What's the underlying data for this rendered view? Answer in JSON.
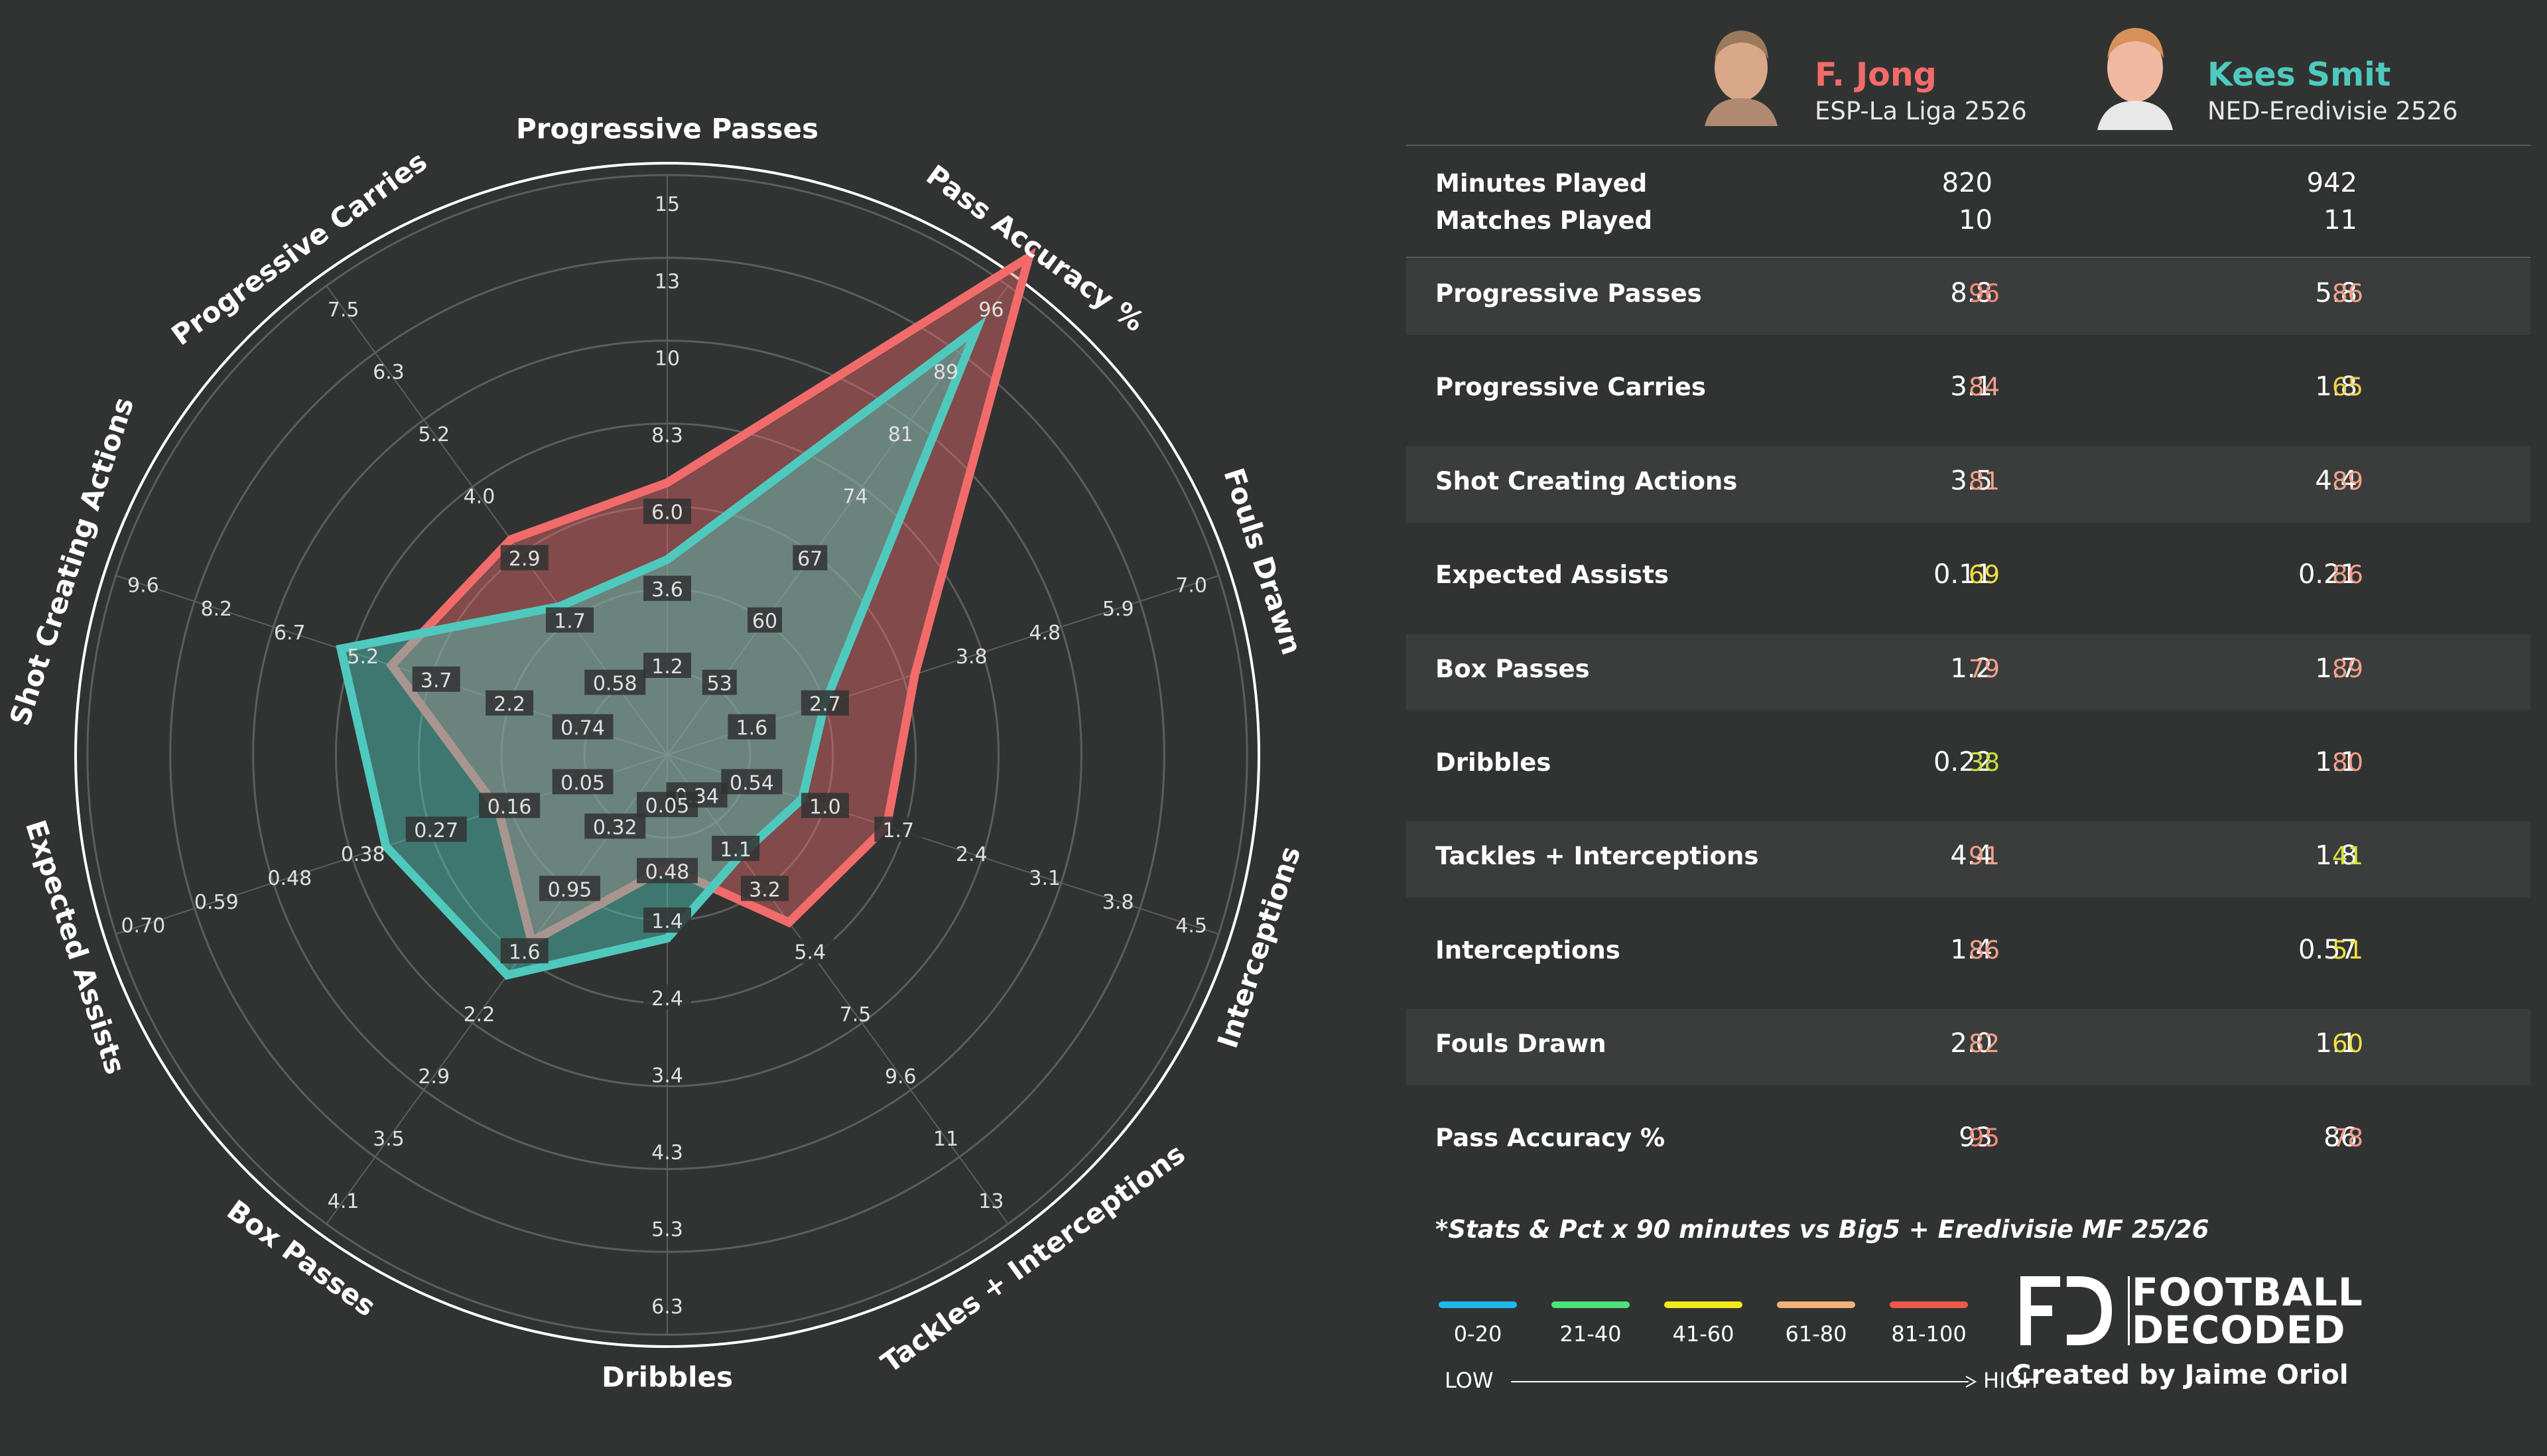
{
  "chart_data": {
    "type": "radar",
    "axes": [
      {
        "name": "Progressive Passes",
        "ticks": [
          "1.2",
          "3.6",
          "6.0",
          "8.3",
          "10",
          "13",
          "15"
        ]
      },
      {
        "name": "Pass Accuracy %",
        "ticks": [
          "53",
          "60",
          "67",
          "74",
          "81",
          "89",
          "96"
        ]
      },
      {
        "name": "Fouls Drawn",
        "ticks": [
          "1.6",
          "2.7",
          "3.8",
          "4.8",
          "5.9",
          "7.0"
        ]
      },
      {
        "name": "Interceptions",
        "ticks": [
          "0.54",
          "1.0",
          "1.7",
          "2.4",
          "3.1",
          "3.8",
          "4.5"
        ]
      },
      {
        "name": "Tackles + Interceptions",
        "ticks": [
          "0.34",
          "1.1",
          "3.2",
          "5.4",
          "7.5",
          "9.6",
          "11",
          "13"
        ]
      },
      {
        "name": "Dribbles",
        "ticks": [
          "0.05",
          "0.48",
          "1.4",
          "2.4",
          "3.4",
          "4.3",
          "5.3",
          "6.3"
        ]
      },
      {
        "name": "Box Passes",
        "ticks": [
          "0.32",
          "0.95",
          "1.6",
          "2.2",
          "2.9",
          "3.5",
          "4.1"
        ]
      },
      {
        "name": "Expected Assists",
        "ticks": [
          "0.05",
          "0.16",
          "0.27",
          "0.38",
          "0.48",
          "0.59",
          "0.70"
        ]
      },
      {
        "name": "Shot Creating Actions",
        "ticks": [
          "0.74",
          "2.2",
          "3.7",
          "5.2",
          "6.7",
          "8.2",
          "9.6"
        ]
      },
      {
        "name": "Progressive Carries",
        "ticks": [
          "0.58",
          "1.7",
          "2.9",
          "4.0",
          "5.2",
          "6.3",
          "7.5"
        ]
      }
    ],
    "series": [
      {
        "name": "F. Jong",
        "color": "#f26b6b",
        "values_fraction_of_max": [
          0.46,
          1.04,
          0.44,
          0.39,
          0.35,
          0.19,
          0.39,
          0.3,
          0.49,
          0.45
        ]
      },
      {
        "name": "Kees Smit",
        "color": "#4fc9bd",
        "values_fraction_of_max": [
          0.33,
          0.89,
          0.28,
          0.24,
          0.21,
          0.31,
          0.46,
          0.5,
          0.58,
          0.31
        ]
      }
    ],
    "tick_fraction_of_max": [
      0.14,
      0.28,
      0.42,
      0.56,
      0.7,
      0.84,
      0.98
    ]
  },
  "players": [
    {
      "name": "F. Jong",
      "league": "ESP-La Liga 2526",
      "color": "#f26b6b",
      "minutes": "820",
      "matches": "10"
    },
    {
      "name": "Kees Smit",
      "league": "NED-Eredivisie 2526",
      "color": "#4fc9bd",
      "minutes": "942",
      "matches": "11"
    }
  ],
  "basic_labels": {
    "minutes": "Minutes Played",
    "matches": "Matches Played"
  },
  "stats": [
    {
      "label": "Progressive Passes",
      "p1": "8.8",
      "p1_pct": "96",
      "p1_color": "#f28b7a",
      "p2": "5.8",
      "p2_pct": "86",
      "p2_color": "#f2a08a"
    },
    {
      "label": "Progressive Carries",
      "p1": "3.1",
      "p1_pct": "84",
      "p1_color": "#f2a08a",
      "p2": "1.8",
      "p2_pct": "65",
      "p2_color": "#f2d24a"
    },
    {
      "label": "Shot Creating Actions",
      "p1": "3.5",
      "p1_pct": "81",
      "p1_color": "#f2a08a",
      "p2": "4.4",
      "p2_pct": "89",
      "p2_color": "#f2a08a"
    },
    {
      "label": "Expected Assists",
      "p1": "0.11",
      "p1_pct": "69",
      "p1_color": "#f2e040",
      "p2": "0.21",
      "p2_pct": "86",
      "p2_color": "#f2a08a"
    },
    {
      "label": "Box Passes",
      "p1": "1.2",
      "p1_pct": "79",
      "p1_color": "#f2a08a",
      "p2": "1.7",
      "p2_pct": "89",
      "p2_color": "#f2a08a"
    },
    {
      "label": "Dribbles",
      "p1": "0.22",
      "p1_pct": "38",
      "p1_color": "#c8e040",
      "p2": "1.1",
      "p2_pct": "80",
      "p2_color": "#f2a08a"
    },
    {
      "label": "Tackles + Interceptions",
      "p1": "4.4",
      "p1_pct": "91",
      "p1_color": "#f2a08a",
      "p2": "1.8",
      "p2_pct": "41",
      "p2_color": "#d4e040"
    },
    {
      "label": "Interceptions",
      "p1": "1.4",
      "p1_pct": "86",
      "p1_color": "#f2a08a",
      "p2": "0.57",
      "p2_pct": "51",
      "p2_color": "#f2e040"
    },
    {
      "label": "Fouls Drawn",
      "p1": "2.0",
      "p1_pct": "82",
      "p1_color": "#f2a08a",
      "p2": "1.1",
      "p2_pct": "60",
      "p2_color": "#f2e040"
    },
    {
      "label": "Pass Accuracy %",
      "p1": "93",
      "p1_pct": "95",
      "p1_color": "#f28b7a",
      "p2": "86",
      "p2_pct": "78",
      "p2_color": "#f2a08a"
    }
  ],
  "footnote": "*Stats & Pct x 90 minutes vs Big5 + Eredivisie MF 25/26",
  "legend": [
    {
      "label": "0-20",
      "color": "#1fb8ea"
    },
    {
      "label": "21-40",
      "color": "#4ee37a"
    },
    {
      "label": "41-60",
      "color": "#f2ec1c"
    },
    {
      "label": "61-80",
      "color": "#f2b27a"
    },
    {
      "label": "81-100",
      "color": "#ee5a48"
    }
  ],
  "scale": {
    "low": "LOW",
    "high": "HIGH"
  },
  "brand": {
    "line1": "FOOTBALL",
    "line2": "DECODED",
    "credit": "Created by Jaime Oriol"
  }
}
